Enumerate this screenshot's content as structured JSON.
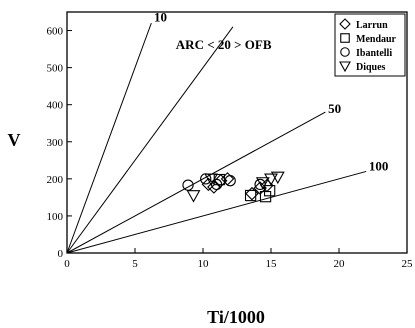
{
  "chart_data": {
    "type": "scatter",
    "title": "",
    "xlabel": "Ti/1000",
    "ylabel": "V",
    "xlim": [
      0,
      25
    ],
    "ylim": [
      0,
      650
    ],
    "x_ticks": [
      0,
      5,
      10,
      15,
      20,
      25
    ],
    "y_ticks": [
      0,
      100,
      200,
      300,
      400,
      500,
      600
    ],
    "grid": false,
    "legend": "top-right",
    "reference_lines": [
      {
        "label": "10",
        "ratio": 0.1,
        "end": [
          6.2,
          620
        ]
      },
      {
        "label": "20",
        "ratio": 0.05,
        "end": [
          12.2,
          610
        ]
      },
      {
        "label": "50",
        "ratio": 0.02,
        "end": [
          19.0,
          380
        ]
      },
      {
        "label": "100",
        "ratio": 0.01,
        "end": [
          22.0,
          220
        ]
      }
    ],
    "annotations": [
      {
        "text": "10",
        "x": 6.4,
        "y": 625
      },
      {
        "text": "ARC < 20 > OFB",
        "x": 8.0,
        "y": 550
      },
      {
        "text": "50",
        "x": 19.2,
        "y": 378
      },
      {
        "text": "100",
        "x": 22.2,
        "y": 222
      }
    ],
    "series": [
      {
        "name": "Larrun",
        "marker": "diamond",
        "points": [
          [
            10.4,
            185
          ],
          [
            10.8,
            178
          ],
          [
            11.3,
            195
          ],
          [
            11.8,
            200
          ],
          [
            13.6,
            160
          ],
          [
            14.2,
            175
          ],
          [
            14.7,
            182
          ]
        ]
      },
      {
        "name": "Mendaur",
        "marker": "square",
        "points": [
          [
            11.2,
            198
          ],
          [
            13.5,
            155
          ],
          [
            14.6,
            152
          ],
          [
            14.9,
            168
          ]
        ]
      },
      {
        "name": "Ibantelli",
        "marker": "circle",
        "points": [
          [
            8.9,
            183
          ],
          [
            10.2,
            200
          ],
          [
            11.0,
            185
          ],
          [
            12.0,
            195
          ],
          [
            14.2,
            185
          ]
        ]
      },
      {
        "name": "Diques",
        "marker": "triangle-down",
        "points": [
          [
            9.3,
            155
          ],
          [
            10.6,
            200
          ],
          [
            14.4,
            190
          ],
          [
            15.0,
            200
          ],
          [
            15.5,
            205
          ]
        ]
      }
    ]
  }
}
